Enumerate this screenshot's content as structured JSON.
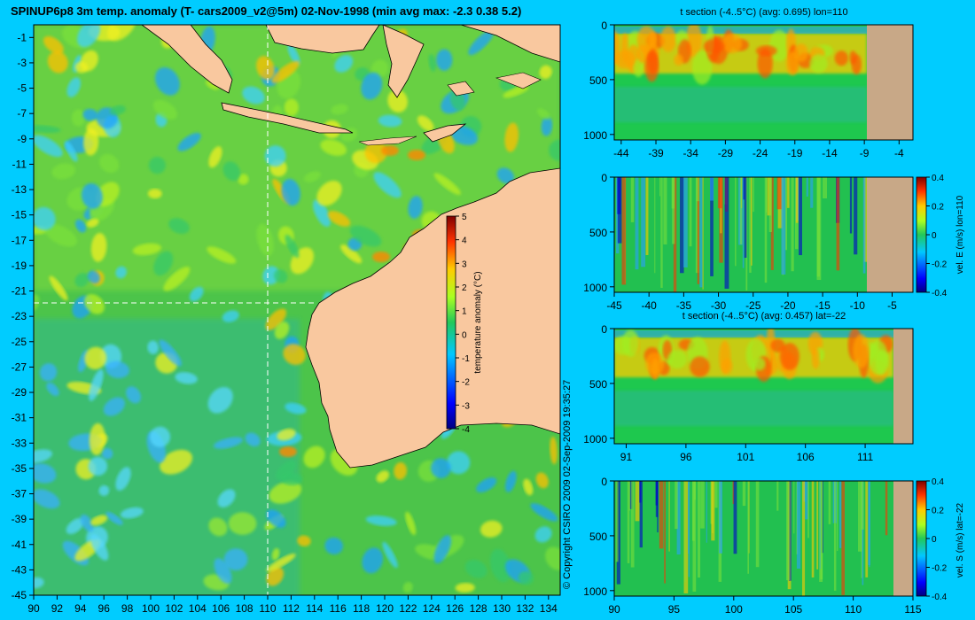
{
  "title": "SPINUP6p8 3m temp. anomaly (T- cars2009_v2@5m) 02-Nov-1998 (min avg max: -2.3 0.38 5.2)",
  "copyright": "© Copyright CSIRO 2009   02-Sep-2009 19:35:27",
  "colors": {
    "background": "#00ccff",
    "land": "#f9c89f",
    "section_land": "#c8a887",
    "dash": "#ffffff"
  },
  "chart_data": [
    {
      "type": "heatmap",
      "name_hint": "map",
      "title": "SPINUP6p8 3m temp. anomaly (T- cars2009_v2@5m) 02-Nov-1998 (min avg max: -2.3 0.38 5.2)",
      "xlim": [
        90,
        135
      ],
      "ylim": [
        -45,
        0
      ],
      "x_ticks": [
        "90",
        "92",
        "94",
        "96",
        "98",
        "100",
        "102",
        "104",
        "106",
        "108",
        "110",
        "112",
        "114",
        "116",
        "118",
        "120",
        "122",
        "124",
        "126",
        "128",
        "130",
        "132",
        "134"
      ],
      "y_ticks": [
        "-1",
        "-3",
        "-5",
        "-7",
        "-9",
        "-11",
        "-13",
        "-15",
        "-17",
        "-19",
        "-21",
        "-23",
        "-25",
        "-27",
        "-29",
        "-31",
        "-33",
        "-35",
        "-37",
        "-39",
        "-41",
        "-43",
        "-45"
      ],
      "crosshair": {
        "lon": 110,
        "lat": -22
      },
      "colorbar": {
        "label": "temperature anomaly (°C)",
        "min": -4,
        "max": 5,
        "ticks": [
          "5",
          "4",
          "3",
          "2",
          "1",
          "0",
          "-1",
          "-2",
          "-3",
          "-4"
        ]
      }
    },
    {
      "type": "heatmap",
      "title": "t section (-4..5°C) (avg: 0.695) lon=110",
      "xlim": [
        -45,
        -2
      ],
      "ylim": [
        1050,
        0
      ],
      "x_ticks": [
        "-44",
        "-39",
        "-34",
        "-29",
        "-24",
        "-19",
        "-14",
        "-9",
        "-4"
      ],
      "y_ticks": [
        "0",
        "500",
        "1000"
      ]
    },
    {
      "type": "heatmap",
      "title": "",
      "xlim": [
        -45,
        -2
      ],
      "ylim": [
        1050,
        0
      ],
      "x_ticks": [
        "-45",
        "-40",
        "-35",
        "-30",
        "-25",
        "-20",
        "-15",
        "-10",
        "-5"
      ],
      "y_ticks": [
        "0",
        "500",
        "1000"
      ],
      "colorbar": {
        "label": "vel. E (m/s) lon=110",
        "min": -0.4,
        "max": 0.4,
        "ticks": [
          "0.4",
          "0.2",
          "0",
          "-0.2",
          "-0.4"
        ]
      }
    },
    {
      "type": "heatmap",
      "title": "t section (-4..5°C) (avg: 0.457) lat=-22",
      "xlim": [
        90,
        115
      ],
      "ylim": [
        1050,
        0
      ],
      "x_ticks": [
        "91",
        "96",
        "101",
        "106",
        "111"
      ],
      "y_ticks": [
        "0",
        "500",
        "1000"
      ]
    },
    {
      "type": "heatmap",
      "title": "",
      "xlim": [
        90,
        115
      ],
      "ylim": [
        1050,
        0
      ],
      "x_ticks": [
        "90",
        "95",
        "100",
        "105",
        "110",
        "115"
      ],
      "y_ticks": [
        "0",
        "500",
        "1000"
      ],
      "colorbar": {
        "label": "vel. S (m/s) lat=-22",
        "min": -0.4,
        "max": 0.4,
        "ticks": [
          "0.4",
          "0.2",
          "0",
          "-0.2",
          "-0.4"
        ]
      }
    }
  ]
}
